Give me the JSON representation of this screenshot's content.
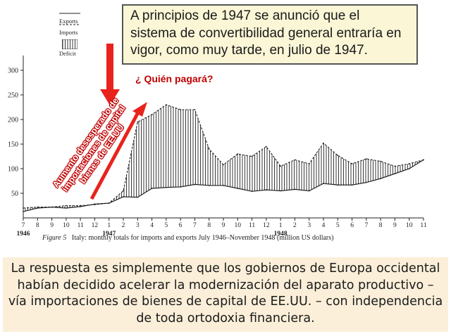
{
  "callout_top": "A principios de 1947 se anunció que el sistema de convertibilidad general entraría en vigor, como muy tarde, en julio de 1947.",
  "question": "¿ Quién pagará?",
  "arrow_note": "Aumento desesperado de importaciones de capital bienes de EE.UU",
  "bottom_text": "La respuesta es simplemente que los gobiernos de Europa occidental habían decidido acelerar la modernización del aparato productivo – vía importaciones de bienes de capital de EE.UU. – con independencia de toda ortodoxia financiera.",
  "figure_caption": {
    "label": "Figure 5",
    "text": "Italy: monthly totals for imports and exports July 1946–November 1948 (million US dollars)"
  },
  "colors": {
    "highlight_red": "#c00000",
    "arrow_red": "#e8231c",
    "callout_bg": "#fbf6d6",
    "bottom_bg": "#fbefd9"
  },
  "chart_data": {
    "type": "line",
    "legend": [
      "Exports",
      "Imports",
      "Deficit"
    ],
    "y_ticks": [
      50,
      100,
      150,
      200,
      250,
      300
    ],
    "ylim": [
      0,
      330
    ],
    "x_tick_labels": [
      "7",
      "8",
      "9",
      "10",
      "11",
      "12",
      "1",
      "2",
      "3",
      "4",
      "5",
      "6",
      "7",
      "8",
      "9",
      "10",
      "11",
      "12",
      "1",
      "2",
      "3",
      "4",
      "5",
      "6",
      "7",
      "8",
      "9",
      "10",
      "11"
    ],
    "year_labels": [
      {
        "label": "1946",
        "index": 0
      },
      {
        "label": "1947",
        "index": 6
      },
      {
        "label": "1948",
        "index": 18
      }
    ],
    "series": [
      {
        "name": "Exports",
        "values": [
          13,
          20,
          22,
          20,
          23,
          28,
          30,
          43,
          42,
          60,
          62,
          63,
          68,
          66,
          66,
          60,
          54,
          57,
          55,
          58,
          55,
          70,
          67,
          67,
          72,
          80,
          90,
          100,
          118
        ]
      },
      {
        "name": "Imports",
        "values": [
          20,
          22,
          22,
          25,
          25,
          27,
          30,
          55,
          195,
          210,
          230,
          220,
          220,
          140,
          108,
          130,
          125,
          145,
          105,
          118,
          110,
          152,
          127,
          110,
          120,
          115,
          105,
          110,
          118
        ]
      }
    ]
  }
}
